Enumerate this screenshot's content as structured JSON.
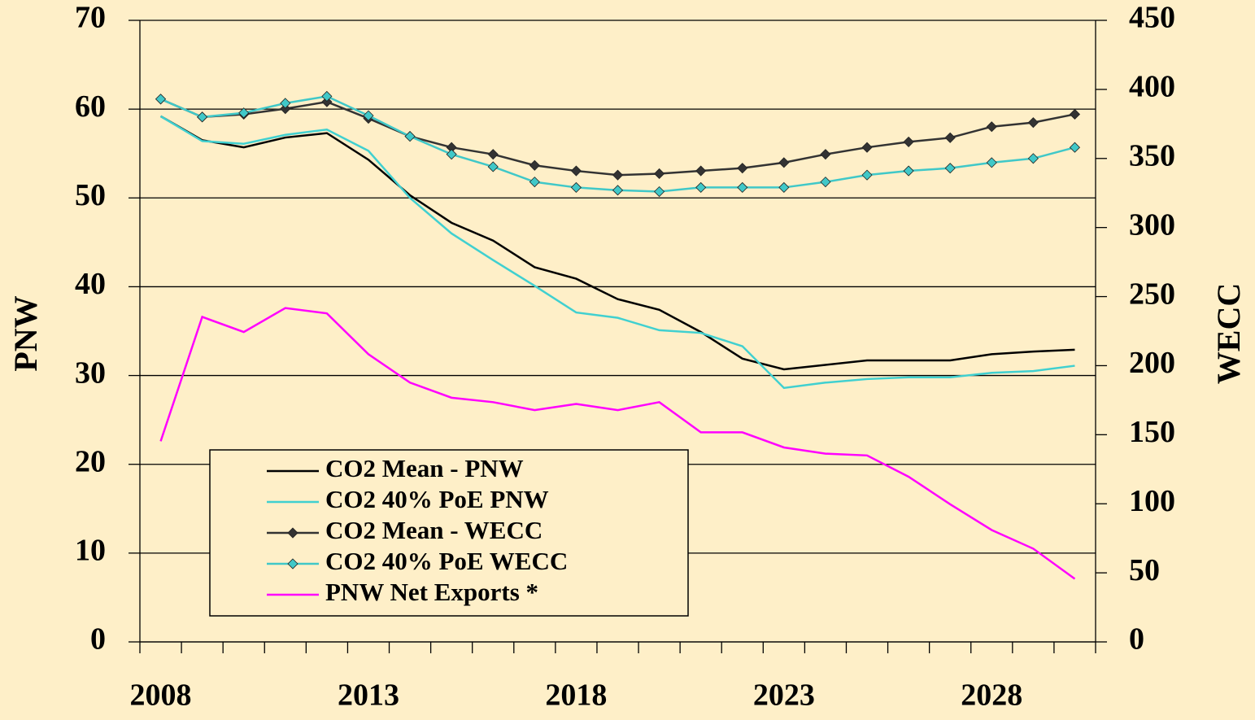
{
  "chart_data": {
    "type": "line",
    "y_label": "PNW",
    "y2_label": "WECC",
    "categories": [
      "2008",
      null,
      null,
      null,
      null,
      "2013",
      null,
      null,
      null,
      null,
      "2018",
      null,
      null,
      null,
      null,
      "2023",
      null,
      null,
      null,
      null,
      "2028",
      null,
      null
    ],
    "ylim": [
      0,
      70
    ],
    "yticks": [
      0,
      10,
      20,
      30,
      40,
      50,
      60,
      70
    ],
    "y2lim": [
      0,
      450
    ],
    "y2ticks": [
      0,
      50,
      100,
      150,
      200,
      250,
      300,
      350,
      400,
      450
    ],
    "grid": true,
    "legend": "lower left",
    "series": [
      {
        "name": "CO2 Mean - PNW",
        "color": "#000000",
        "marker": "none",
        "values": [
          59.2,
          56.5,
          55.7,
          56.8,
          57.3,
          54.3,
          50.3,
          47.2,
          45.2,
          42.2,
          40.9,
          38.6,
          37.4,
          34.9,
          31.9,
          30.7,
          31.2,
          31.7,
          31.7,
          31.7,
          32.4,
          32.7,
          32.9
        ]
      },
      {
        "name": "CO2 40% PoE PNW",
        "color": "#40d0d0",
        "marker": "none",
        "values": [
          59.2,
          56.4,
          56.1,
          57.1,
          57.7,
          55.3,
          50.0,
          46.0,
          43.0,
          40.1,
          37.1,
          36.5,
          35.1,
          34.8,
          33.3,
          28.6,
          29.2,
          29.6,
          29.8,
          29.8,
          30.3,
          30.5,
          31.1
        ]
      },
      {
        "name": "CO2 Mean - WECC",
        "color": "#333333",
        "marker": "diamond",
        "axis": "y2",
        "values": [
          393,
          380,
          382,
          386,
          391,
          379,
          366,
          358,
          353,
          345,
          341,
          338,
          339,
          341,
          343,
          347,
          353,
          358,
          362,
          365,
          373,
          376,
          382
        ]
      },
      {
        "name": "CO2 40% PoE WECC",
        "color": "#40c8c8",
        "marker": "diamond",
        "axis": "y2",
        "values": [
          393,
          380,
          383,
          390,
          395,
          381,
          366,
          353,
          344,
          333,
          329,
          327,
          326,
          329,
          329,
          329,
          333,
          338,
          341,
          343,
          347,
          350,
          358
        ]
      },
      {
        "name": "PNW Net Exports *",
        "color": "#ff00ff",
        "marker": "none",
        "values": [
          22.6,
          36.6,
          34.9,
          37.6,
          37.0,
          32.4,
          29.2,
          27.5,
          27.0,
          26.1,
          26.8,
          26.1,
          27.0,
          23.6,
          23.6,
          21.9,
          21.2,
          21.0,
          18.6,
          15.5,
          12.6,
          10.5,
          7.1
        ]
      }
    ]
  }
}
